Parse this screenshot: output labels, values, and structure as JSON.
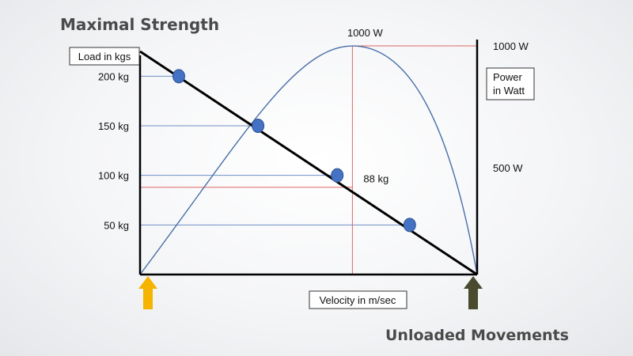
{
  "slide": {
    "title_top": "Maximal Strength",
    "title_bottom": "Unloaded Movements"
  },
  "chart_data": {
    "type": "line",
    "title": "",
    "xlabel": "Velocity in m/sec",
    "ylabel": "Load in kgs",
    "y2label_line1": "Power",
    "y2label_line2": "in Watt",
    "y_ticks": [
      "200 kg",
      "150 kg",
      "100 kg",
      "50 kg"
    ],
    "y_tick_values": [
      200,
      150,
      100,
      50
    ],
    "ylim": [
      0,
      225
    ],
    "xlim": [
      0,
      1
    ],
    "y2_ticks": [
      "1000 W",
      "500 W"
    ],
    "y2_tick_values": [
      1000,
      500
    ],
    "y2lim": [
      0,
      1180
    ],
    "peak_power_label": "1000 W",
    "optimal_load_label": "88 kg",
    "optimal_load": 88,
    "optimal_velocity": 0.63,
    "series": [
      {
        "name": "Load",
        "kind": "line",
        "x": [
          0,
          1
        ],
        "y": [
          225,
          0
        ],
        "color": "#000000"
      },
      {
        "name": "Power",
        "kind": "curve",
        "axis": "y2",
        "peak_x": 0.63,
        "peak_y": 1000,
        "color": "#4a6fa8"
      }
    ],
    "points": [
      {
        "x": 0.115,
        "y": 200
      },
      {
        "x": 0.35,
        "y": 150
      },
      {
        "x": 0.585,
        "y": 100
      },
      {
        "x": 0.8,
        "y": 50
      }
    ],
    "point_color": "#4472c4",
    "guide_color_blue": "#6f8fc4",
    "guide_color_red": "#e06666",
    "arrows": [
      {
        "position": "x-start",
        "color": "#f5b400"
      },
      {
        "position": "x-end",
        "color": "#4a4a2e"
      }
    ]
  }
}
